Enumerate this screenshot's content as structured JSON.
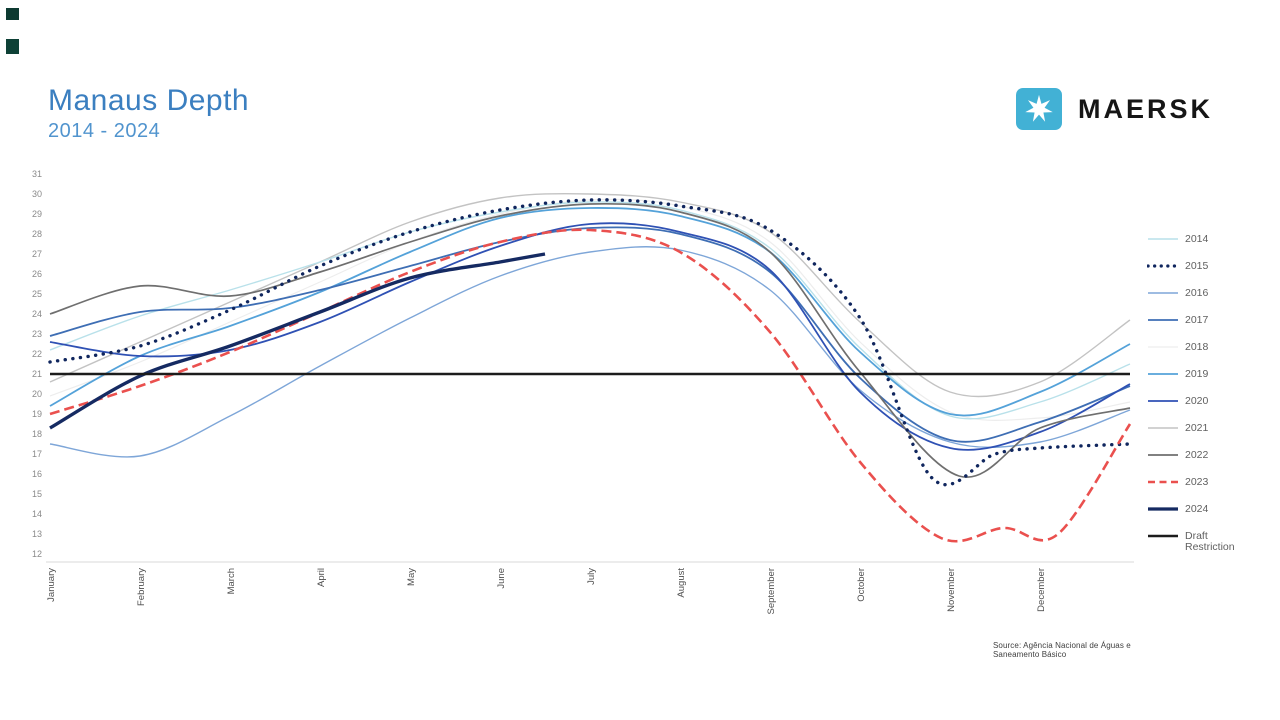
{
  "title": "Manaus Depth",
  "subtitle": "2014 - 2024",
  "brand": {
    "name": "MAERSK",
    "star_box_color": "#42b1d5",
    "star_icon": "seven-pointed-star"
  },
  "source": "Source: Agência Nacional de Águas e Saneamento Básico",
  "accent_colors": {
    "title_blue": "#3b7fc0",
    "subtitle_blue": "#5194ce",
    "draft_restriction": "#1c1c1c"
  },
  "chart_data": {
    "type": "line",
    "title": "Manaus Depth 2014 - 2024",
    "xlabel": "",
    "ylabel": "",
    "ylim": [
      12,
      31
    ],
    "y_tick_labels": [
      12,
      13,
      14,
      15,
      16,
      17,
      18,
      19,
      20,
      21,
      22,
      23,
      24,
      25,
      26,
      27,
      28,
      29,
      30,
      31
    ],
    "x_tick_labels": [
      "January",
      "February",
      "March",
      "April",
      "May",
      "June",
      "July",
      "August",
      "September",
      "October",
      "November",
      "December"
    ],
    "grid": false,
    "legend_position": "right",
    "series": [
      {
        "name": "2014",
        "color": "#b9e1ea",
        "style": "solid",
        "width": 1.4,
        "zorder": 3,
        "x": [
          0,
          1,
          2,
          3,
          4,
          5,
          6,
          7,
          8,
          9,
          10,
          11,
          12
        ],
        "values": [
          22.2,
          23.9,
          25.2,
          26.6,
          28.1,
          29.1,
          29.6,
          29.2,
          27.3,
          22.3,
          18.9,
          19.6,
          21.5
        ]
      },
      {
        "name": "2015",
        "color": "#10265e",
        "style": "dotted",
        "width": 3.4,
        "zorder": 9,
        "x": [
          0,
          1,
          2,
          3,
          4,
          5,
          6,
          7,
          8,
          9,
          9.8,
          10.5,
          11,
          12
        ],
        "values": [
          21.6,
          22.4,
          24.2,
          26.4,
          28.1,
          29.2,
          29.7,
          29.4,
          28.2,
          23.8,
          15.8,
          17.0,
          17.3,
          17.5
        ]
      },
      {
        "name": "2016",
        "color": "#7ea6d8",
        "style": "solid",
        "width": 1.4,
        "zorder": 4,
        "x": [
          0,
          1,
          2,
          3,
          4,
          5,
          6,
          7,
          8,
          9,
          10,
          11,
          12
        ],
        "values": [
          17.5,
          16.9,
          18.9,
          21.4,
          23.8,
          25.9,
          27.1,
          27.2,
          25.2,
          20.2,
          17.6,
          17.6,
          19.2
        ]
      },
      {
        "name": "2017",
        "color": "#3e6eb4",
        "style": "solid",
        "width": 1.8,
        "zorder": 6,
        "x": [
          0,
          1,
          2,
          3,
          4,
          5,
          6,
          7,
          8,
          9,
          10,
          11,
          12
        ],
        "values": [
          22.9,
          24.1,
          24.3,
          25.2,
          26.4,
          27.6,
          28.3,
          28.0,
          26.1,
          20.8,
          17.7,
          18.6,
          20.4
        ]
      },
      {
        "name": "2018",
        "color": "#ededed",
        "style": "solid",
        "width": 1.2,
        "zorder": 1,
        "x": [
          0,
          1,
          2,
          3,
          4,
          5,
          6,
          7,
          8,
          9,
          10,
          11,
          12
        ],
        "values": [
          19.9,
          21.6,
          23.6,
          25.6,
          27.6,
          29.0,
          29.7,
          29.4,
          27.6,
          22.6,
          19.1,
          18.8,
          19.6
        ]
      },
      {
        "name": "2019",
        "color": "#54a2d9",
        "style": "solid",
        "width": 1.8,
        "zorder": 5,
        "x": [
          0,
          1,
          2,
          3,
          4,
          5,
          6,
          7,
          8,
          9,
          10,
          11,
          12
        ],
        "values": [
          19.4,
          21.9,
          23.4,
          25.1,
          27.1,
          28.8,
          29.3,
          28.9,
          27.1,
          22.1,
          19.0,
          20.1,
          22.5
        ]
      },
      {
        "name": "2020",
        "color": "#2f51b4",
        "style": "solid",
        "width": 1.8,
        "zorder": 7,
        "x": [
          0,
          1,
          2,
          3,
          4,
          5,
          6,
          7,
          8,
          9,
          10,
          11,
          12
        ],
        "values": [
          22.6,
          21.9,
          22.2,
          23.6,
          25.6,
          27.4,
          28.5,
          28.1,
          26.2,
          20.1,
          17.3,
          18.1,
          20.5
        ]
      },
      {
        "name": "2021",
        "color": "#c3c3c3",
        "style": "solid",
        "width": 1.4,
        "zorder": 2,
        "x": [
          0,
          1,
          2,
          3,
          4,
          5,
          6,
          7,
          8,
          9,
          10,
          11,
          12
        ],
        "values": [
          20.6,
          22.6,
          24.6,
          26.6,
          28.6,
          29.8,
          30.0,
          29.6,
          28.1,
          23.6,
          20.1,
          20.6,
          23.7
        ]
      },
      {
        "name": "2022",
        "color": "#6f6f6f",
        "style": "solid",
        "width": 1.7,
        "zorder": 8,
        "x": [
          0,
          1,
          2,
          3,
          4,
          5,
          6,
          7,
          8,
          9,
          10.1,
          11,
          12
        ],
        "values": [
          24.0,
          25.4,
          24.9,
          26.1,
          27.6,
          28.9,
          29.5,
          29.1,
          27.1,
          21.1,
          15.9,
          18.3,
          19.3
        ]
      },
      {
        "name": "2023",
        "color": "#ea504e",
        "style": "dashed",
        "width": 2.6,
        "zorder": 10,
        "x": [
          0,
          1,
          2,
          3,
          4,
          5,
          6,
          7,
          8,
          9,
          9.9,
          10.6,
          11.2,
          12
        ],
        "values": [
          19.0,
          20.4,
          22.1,
          24.1,
          26.1,
          27.6,
          28.2,
          27.1,
          23.1,
          16.6,
          12.8,
          13.3,
          13.0,
          18.5
        ]
      },
      {
        "name": "2024",
        "color": "#152a62",
        "style": "solid",
        "width": 3.4,
        "zorder": 11,
        "x": [
          0,
          1,
          2,
          3,
          4,
          5,
          5.5
        ],
        "values": [
          18.3,
          20.9,
          22.4,
          24.1,
          25.8,
          26.6,
          27.0
        ]
      },
      {
        "name": "Draft Restriction",
        "color": "#1c1c1c",
        "style": "solid",
        "width": 2.6,
        "zorder": 12,
        "x": [
          0,
          12
        ],
        "values": [
          21,
          21
        ]
      }
    ]
  }
}
